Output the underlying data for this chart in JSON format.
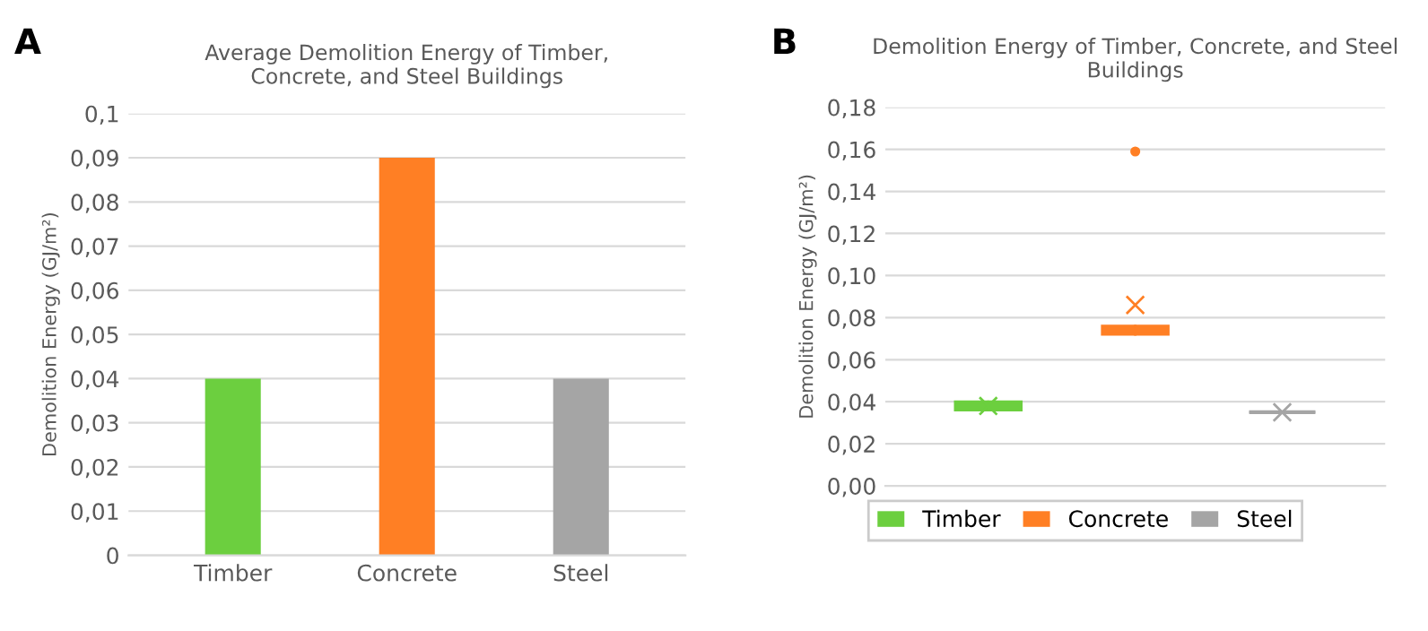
{
  "chart_data": [
    {
      "type": "bar",
      "title": "Average Demolition Energy of Timber,\nConcrete, and Steel Buildings",
      "ylabel": "Demolition Energy (GJ/m²)",
      "annotations": [
        "A"
      ],
      "categories": [
        "Timber",
        "Concrete",
        "Steel"
      ],
      "values": [
        0.04,
        0.09,
        0.04
      ],
      "colors": [
        "#6ccf3f",
        "#ff7f24",
        "#a5a5a5"
      ],
      "ylim": [
        0,
        0.1
      ],
      "yticks": [
        0,
        {
          "value": 0.01,
          "label": "0,01"
        },
        {
          "value": 0.02,
          "label": "0,02"
        },
        {
          "value": 0.03,
          "label": "0,03"
        },
        {
          "value": 0.04,
          "label": "0,04"
        },
        {
          "value": 0.05,
          "label": "0,05"
        },
        {
          "value": 0.06,
          "label": "0,06"
        },
        {
          "value": 0.07,
          "label": "0,07"
        },
        {
          "value": 0.08,
          "label": "0,08"
        },
        {
          "value": 0.09,
          "label": "0,09"
        },
        {
          "value": 0.1,
          "label": "0,1"
        }
      ],
      "grid": "y"
    },
    {
      "type": "box",
      "title": "Demolition Energy of Timber, Concrete, and Steel\nBuildings",
      "ylabel": "Demolition Energy (GJ/m²)",
      "annotations": [
        "B"
      ],
      "categories": [
        null,
        null,
        null
      ],
      "legend": "bottom",
      "tick_labels": "y",
      "grid": "y",
      "series": [
        {
          "name": "Timber",
          "color": "#6ccf3f",
          "boxes": [
            {
              "low": 0.036,
              "q1": 0.036,
              "median": 0.038,
              "q3": 0.04,
              "high": 0.04,
              "mean": 0.038
            },
            null,
            null
          ]
        },
        {
          "name": "Concrete",
          "color": "#ff7f24",
          "boxes": [
            null,
            {
              "low": 0.072,
              "q1": 0.072,
              "median": 0.074,
              "q3": 0.076,
              "high": 0.076,
              "mean": 0.086,
              "outliers": [
                0.159
              ]
            },
            null
          ]
        },
        {
          "name": "Steel",
          "color": "#a5a5a5",
          "boxes": [
            null,
            null,
            {
              "low": 0.035,
              "q1": 0.035,
              "median": 0.035,
              "q3": 0.035,
              "high": 0.035,
              "mean": 0.035
            }
          ]
        }
      ],
      "ylim": [
        0,
        0.18
      ],
      "yticks": [
        {
          "value": 0,
          "label": "0,00"
        },
        {
          "value": 0.02,
          "label": "0,02"
        },
        {
          "value": 0.04,
          "label": "0,04"
        },
        {
          "value": 0.06,
          "label": "0,06"
        },
        {
          "value": 0.08,
          "label": "0,08"
        },
        {
          "value": 0.1,
          "label": "0,10"
        },
        {
          "value": 0.12,
          "label": "0,12"
        },
        {
          "value": 0.14,
          "label": "0,14"
        },
        {
          "value": 0.16,
          "label": "0,16"
        },
        {
          "value": 0.18,
          "label": "0,18"
        }
      ]
    }
  ]
}
